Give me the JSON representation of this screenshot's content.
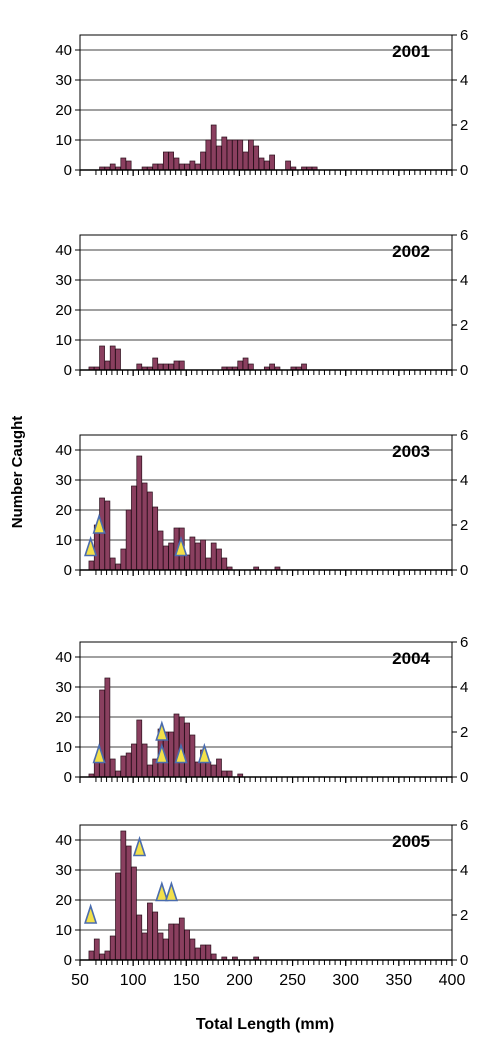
{
  "ylabel": "Number Caught",
  "xlabel": "Total Length (mm)",
  "x_tick_labels": [
    "50",
    "100",
    "150",
    "200",
    "250",
    "300",
    "350",
    "400"
  ],
  "left_tick_labels": [
    "0",
    "10",
    "20",
    "30",
    "40"
  ],
  "right_tick_labels": [
    "0",
    "2",
    "4",
    "6"
  ],
  "colors": {
    "bar": "#8a3f5f",
    "bar_edge": "#2a0f1c",
    "marker": "#f2e04a",
    "marker_edge": "#4a6cae"
  },
  "chart_data": [
    {
      "type": "bar",
      "title": "2001",
      "x": [
        65,
        70,
        75,
        80,
        85,
        90,
        95,
        100,
        105,
        110,
        115,
        120,
        125,
        130,
        135,
        140,
        145,
        150,
        155,
        160,
        165,
        170,
        175,
        180,
        185,
        190,
        195,
        200,
        205,
        210,
        215,
        220,
        225,
        230,
        235,
        240,
        245,
        250,
        255,
        260,
        265,
        270,
        275,
        280,
        285,
        290,
        295,
        300,
        305,
        310,
        315,
        320,
        325,
        330,
        335,
        340,
        345,
        350,
        355,
        360,
        365,
        370,
        375,
        380,
        385,
        390,
        395,
        400
      ],
      "values": [
        0,
        0,
        1,
        1,
        2,
        1,
        4,
        3,
        0,
        0,
        1,
        1,
        2,
        2,
        6,
        6,
        4,
        2,
        2,
        3,
        2,
        6,
        10,
        15,
        8,
        11,
        10,
        10,
        10,
        6,
        10,
        8,
        4,
        3,
        5,
        0,
        0,
        3,
        1,
        0,
        1,
        1,
        1,
        0,
        0,
        0,
        0,
        0,
        0,
        0,
        0,
        0,
        0,
        0,
        0,
        0,
        0,
        0,
        0,
        0,
        0,
        0,
        0,
        0,
        0,
        0,
        0,
        0
      ],
      "xlim": [
        50,
        400
      ],
      "ylim": [
        0,
        45
      ],
      "ylim_right": [
        0,
        6
      ],
      "xlabel": "Total Length (mm)",
      "ylabel": "Number Caught",
      "markers": []
    },
    {
      "type": "bar",
      "title": "2002",
      "x": [
        65,
        70,
        75,
        80,
        85,
        90,
        95,
        100,
        105,
        110,
        115,
        120,
        125,
        130,
        135,
        140,
        145,
        150,
        155,
        160,
        165,
        170,
        175,
        180,
        185,
        190,
        195,
        200,
        205,
        210,
        215,
        220,
        225,
        230,
        235,
        240,
        245,
        250,
        255,
        260,
        265,
        270,
        275,
        280,
        285,
        290,
        295,
        300,
        305,
        310,
        315,
        320,
        325,
        330,
        335,
        340,
        345,
        350,
        355,
        360,
        365,
        370,
        375,
        380,
        385,
        390,
        395,
        400
      ],
      "values": [
        1,
        1,
        8,
        3,
        8,
        7,
        0,
        0,
        0,
        2,
        1,
        1,
        4,
        2,
        2,
        2,
        3,
        3,
        0,
        0,
        0,
        0,
        0,
        0,
        0,
        1,
        1,
        1,
        3,
        4,
        2,
        0,
        0,
        1,
        2,
        1,
        0,
        0,
        1,
        1,
        2,
        0,
        0,
        0,
        0,
        0,
        0,
        0,
        0,
        0,
        0,
        0,
        0,
        0,
        0,
        0,
        0,
        0,
        0,
        0,
        0,
        0,
        0,
        0,
        0,
        0,
        0,
        0
      ],
      "xlim": [
        50,
        400
      ],
      "ylim": [
        0,
        45
      ],
      "ylim_right": [
        0,
        6
      ],
      "xlabel": "Total Length (mm)",
      "ylabel": "Number Caught",
      "markers": []
    },
    {
      "type": "bar",
      "title": "2003",
      "x": [
        65,
        70,
        75,
        80,
        85,
        90,
        95,
        100,
        105,
        110,
        115,
        120,
        125,
        130,
        135,
        140,
        145,
        150,
        155,
        160,
        165,
        170,
        175,
        180,
        185,
        190,
        195,
        200,
        205,
        210,
        215,
        220,
        225,
        230,
        235,
        240,
        245,
        250,
        255,
        260,
        265,
        270,
        275,
        280,
        285,
        290,
        295,
        300,
        305,
        310,
        315,
        320,
        325,
        330,
        335,
        340,
        345,
        350,
        355,
        360,
        365,
        370,
        375,
        380,
        385,
        390,
        395,
        400
      ],
      "values": [
        3,
        15,
        24,
        23,
        4,
        2,
        7,
        20,
        28,
        38,
        29,
        26,
        21,
        13,
        8,
        9,
        14,
        14,
        5,
        11,
        9,
        10,
        4,
        9,
        7,
        4,
        1,
        0,
        0,
        0,
        0,
        1,
        0,
        0,
        0,
        1,
        0,
        0,
        0,
        0,
        0,
        0,
        0,
        0,
        0,
        0,
        0,
        0,
        0,
        0,
        0,
        0,
        0,
        0,
        0,
        0,
        0,
        0,
        0,
        0,
        0,
        0,
        0,
        0,
        0,
        0,
        0,
        0
      ],
      "xlim": [
        50,
        400
      ],
      "ylim": [
        0,
        45
      ],
      "ylim_right": [
        0,
        6
      ],
      "xlabel": "Total Length (mm)",
      "ylabel": "Number Caught",
      "markers": [
        {
          "x": 60,
          "y": 1
        },
        {
          "x": 68,
          "y": 2
        },
        {
          "x": 145,
          "y": 1
        }
      ]
    },
    {
      "type": "bar",
      "title": "2004",
      "x": [
        65,
        70,
        75,
        80,
        85,
        90,
        95,
        100,
        105,
        110,
        115,
        120,
        125,
        130,
        135,
        140,
        145,
        150,
        155,
        160,
        165,
        170,
        175,
        180,
        185,
        190,
        195,
        200,
        205,
        210,
        215,
        220,
        225,
        230,
        235,
        240,
        245,
        250,
        255,
        260,
        265,
        270,
        275,
        280,
        285,
        290,
        295,
        300,
        305,
        310,
        315,
        320,
        325,
        330,
        335,
        340,
        345,
        350,
        355,
        360,
        365,
        370,
        375,
        380,
        385,
        390,
        395,
        400
      ],
      "values": [
        1,
        6,
        29,
        33,
        6,
        2,
        7,
        8,
        11,
        19,
        11,
        4,
        6,
        16,
        15,
        15,
        21,
        20,
        18,
        14,
        5,
        9,
        5,
        4,
        6,
        2,
        2,
        0,
        1,
        0,
        0,
        0,
        0,
        0,
        0,
        0,
        0,
        0,
        0,
        0,
        0,
        0,
        0,
        0,
        0,
        0,
        0,
        0,
        0,
        0,
        0,
        0,
        0,
        0,
        0,
        0,
        0,
        0,
        0,
        0,
        0,
        0,
        0,
        0,
        0,
        0,
        0,
        0
      ],
      "xlim": [
        50,
        400
      ],
      "ylim": [
        0,
        45
      ],
      "ylim_right": [
        0,
        6
      ],
      "xlabel": "Total Length (mm)",
      "ylabel": "Number Caught",
      "markers": [
        {
          "x": 68,
          "y": 1
        },
        {
          "x": 127,
          "y": 2
        },
        {
          "x": 127,
          "y": 1
        },
        {
          "x": 145,
          "y": 1
        },
        {
          "x": 167,
          "y": 1
        }
      ]
    },
    {
      "type": "bar",
      "title": "2005",
      "x": [
        65,
        70,
        75,
        80,
        85,
        90,
        95,
        100,
        105,
        110,
        115,
        120,
        125,
        130,
        135,
        140,
        145,
        150,
        155,
        160,
        165,
        170,
        175,
        180,
        185,
        190,
        195,
        200,
        205,
        210,
        215,
        220,
        225,
        230,
        235,
        240,
        245,
        250,
        255,
        260,
        265,
        270,
        275,
        280,
        285,
        290,
        295,
        300,
        305,
        310,
        315,
        320,
        325,
        330,
        335,
        340,
        345,
        350,
        355,
        360,
        365,
        370,
        375,
        380,
        385,
        390,
        395,
        400
      ],
      "values": [
        3,
        7,
        2,
        3,
        8,
        29,
        43,
        38,
        31,
        15,
        9,
        19,
        16,
        9,
        7,
        12,
        12,
        14,
        10,
        7,
        4,
        5,
        5,
        2,
        0,
        1,
        0,
        1,
        0,
        0,
        0,
        1,
        0,
        0,
        0,
        0,
        0,
        0,
        0,
        0,
        0,
        0,
        0,
        0,
        0,
        0,
        0,
        0,
        0,
        0,
        0,
        0,
        0,
        0,
        0,
        0,
        0,
        0,
        0,
        0,
        0,
        0,
        0,
        0,
        0,
        0,
        0,
        0
      ],
      "xlim": [
        50,
        400
      ],
      "ylim": [
        0,
        45
      ],
      "ylim_right": [
        0,
        6
      ],
      "xlabel": "Total Length (mm)",
      "ylabel": "Number Caught",
      "markers": [
        {
          "x": 60,
          "y": 2
        },
        {
          "x": 106,
          "y": 5
        },
        {
          "x": 127,
          "y": 3
        },
        {
          "x": 136,
          "y": 3
        }
      ]
    }
  ]
}
